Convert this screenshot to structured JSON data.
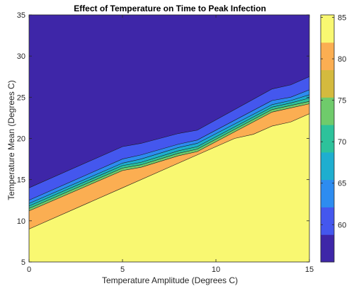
{
  "chart_data": {
    "type": "contour",
    "title": "Effect of Temperature on Time to Peak Infection",
    "xlabel": "Temperature Amplitude (Degrees C)",
    "ylabel": "Temperature Mean (Degrees C)",
    "xlim": [
      0,
      15
    ],
    "ylim": [
      5,
      35
    ],
    "xticks": [
      0,
      5,
      10,
      15
    ],
    "yticks": [
      5,
      10,
      15,
      20,
      25,
      30,
      35
    ],
    "grid": false,
    "colorbar": {
      "range": [
        55.5,
        85.3
      ],
      "ticks": [
        60,
        65,
        70,
        75,
        80,
        85
      ],
      "colors": [
        "#3e26a8",
        "#4457ee",
        "#2d8cf0",
        "#1eaecf",
        "#2dc29b",
        "#6fcb6b",
        "#d4ba3e",
        "#fbae52",
        "#f9f871"
      ]
    },
    "contour_lines": [
      {
        "x": [
          0,
          5,
          6,
          8,
          9,
          13,
          14,
          15
        ],
        "y": [
          14.0,
          19.0,
          19.4,
          20.6,
          21.0,
          26.0,
          26.5,
          27.5
        ]
      },
      {
        "x": [
          0,
          5,
          6,
          8,
          9,
          13,
          14,
          15
        ],
        "y": [
          12.5,
          17.5,
          18.0,
          19.3,
          19.8,
          24.6,
          25.0,
          25.9
        ]
      },
      {
        "x": [
          0,
          5,
          6,
          8,
          9,
          13,
          14,
          15
        ],
        "y": [
          12.1,
          17.0,
          17.5,
          18.9,
          19.4,
          24.1,
          24.6,
          25.3
        ]
      },
      {
        "x": [
          0,
          5,
          6,
          8,
          9,
          13,
          14,
          15
        ],
        "y": [
          11.8,
          16.7,
          17.1,
          18.5,
          19.0,
          23.8,
          24.3,
          24.9
        ]
      },
      {
        "x": [
          0,
          5,
          6,
          8,
          9,
          13,
          14,
          15
        ],
        "y": [
          11.5,
          16.4,
          16.8,
          18.2,
          18.7,
          23.5,
          24.0,
          24.5
        ]
      },
      {
        "x": [
          0,
          5,
          6,
          8,
          9,
          13,
          14,
          15
        ],
        "y": [
          11.2,
          16.1,
          16.5,
          17.9,
          18.4,
          23.2,
          23.7,
          24.2
        ]
      },
      {
        "x": [
          0,
          5,
          8,
          9,
          11,
          12,
          13,
          14,
          15
        ],
        "y": [
          9.0,
          14.0,
          17.0,
          18.0,
          20.0,
          20.5,
          21.5,
          22.0,
          23.0
        ]
      }
    ]
  }
}
